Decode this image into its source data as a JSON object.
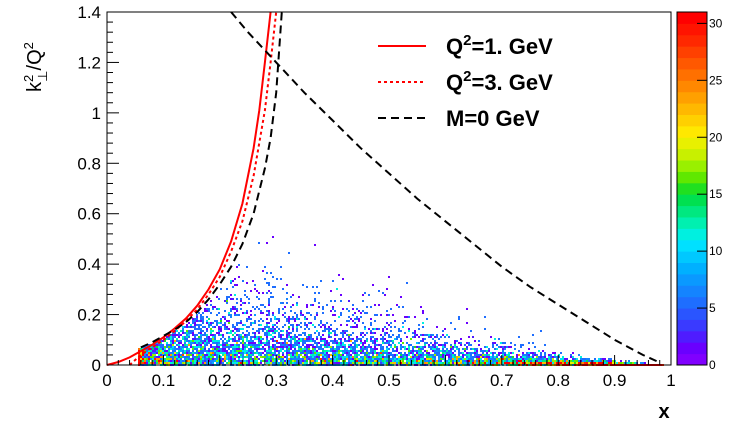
{
  "chart_data": {
    "type": "heatmap",
    "title": "",
    "xlabel": "x",
    "ylabel": "k⊥²/Q²",
    "ylabel_parts": {
      "base": "k",
      "sup": "2",
      "sub": "⊥",
      "slash": "/Q",
      "denom_sup": "2"
    },
    "xlim": [
      0,
      1
    ],
    "ylim": [
      0,
      1.4
    ],
    "x_ticks": [
      0,
      0.1,
      0.2,
      0.3,
      0.4,
      0.5,
      0.6,
      0.7,
      0.8,
      0.9,
      1
    ],
    "x_tick_labels": [
      "0",
      "0.1",
      "0.2",
      "0.3",
      "0.4",
      "0.5",
      "0.6",
      "0.7",
      "0.8",
      "0.9",
      "1"
    ],
    "y_ticks": [
      0,
      0.2,
      0.4,
      0.6,
      0.8,
      1,
      1.2,
      1.4
    ],
    "y_tick_labels": [
      "0",
      "0.2",
      "0.4",
      "0.6",
      "0.8",
      "1",
      "1.2",
      "1.4"
    ],
    "colorbar": {
      "min": 0,
      "max": 31,
      "ticks": [
        0,
        5,
        10,
        15,
        20,
        25,
        30
      ],
      "tick_labels": [
        "0",
        "5",
        "10",
        "15",
        "20",
        "25",
        "30"
      ],
      "colors": [
        "#8000ff",
        "#6a00ff",
        "#4f1cff",
        "#3a3aff",
        "#2a55ff",
        "#1e6eff",
        "#1484ff",
        "#0a99ff",
        "#00b0ff",
        "#00c8ff",
        "#00e0ff",
        "#00f0e0",
        "#00f0b0",
        "#00e880",
        "#00e050",
        "#20e020",
        "#60e800",
        "#99f000",
        "#c8f000",
        "#e8f000",
        "#ffe800",
        "#ffd000",
        "#ffb800",
        "#ffa000",
        "#ff8800",
        "#ff7000",
        "#ff5800",
        "#ff4000",
        "#ff2800",
        "#ff1400",
        "#ff0000"
      ]
    },
    "legend_position": "top-right",
    "series": [
      {
        "name": "Q²=1. GeV",
        "name_parts": {
          "prefix": "Q",
          "sup": "2",
          "suffix": "=1. GeV"
        },
        "style": "solid",
        "color": "#ff0000",
        "x": [
          0,
          0.02,
          0.04,
          0.06,
          0.08,
          0.1,
          0.12,
          0.14,
          0.16,
          0.18,
          0.2,
          0.22,
          0.24,
          0.26,
          0.27,
          0.28,
          0.29
        ],
        "y": [
          0,
          0.012,
          0.03,
          0.055,
          0.08,
          0.11,
          0.145,
          0.185,
          0.235,
          0.3,
          0.38,
          0.49,
          0.64,
          0.86,
          1.01,
          1.2,
          1.4
        ]
      },
      {
        "name": "Q²=3. GeV",
        "name_parts": {
          "prefix": "Q",
          "sup": "2",
          "suffix": "=3. GeV"
        },
        "style": "dotted",
        "color": "#ff0000",
        "x": [
          0.04,
          0.06,
          0.08,
          0.1,
          0.12,
          0.14,
          0.16,
          0.18,
          0.2,
          0.22,
          0.24,
          0.26,
          0.28,
          0.29,
          0.3
        ],
        "y": [
          0.0,
          0.04,
          0.07,
          0.1,
          0.135,
          0.175,
          0.22,
          0.28,
          0.35,
          0.45,
          0.57,
          0.75,
          1.01,
          1.2,
          1.4
        ]
      },
      {
        "name": "M=0 GeV",
        "style": "dashed",
        "color": "#000000",
        "x": [
          0.06,
          0.08,
          0.1,
          0.12,
          0.14,
          0.16,
          0.18,
          0.2,
          0.22,
          0.24,
          0.26,
          0.28,
          0.29,
          0.3,
          0.31
        ],
        "y": [
          0.07,
          0.09,
          0.115,
          0.14,
          0.17,
          0.21,
          0.26,
          0.32,
          0.39,
          0.48,
          0.6,
          0.78,
          0.9,
          1.08,
          1.4
        ]
      },
      {
        "name": "M=0 GeV (upper branch)",
        "legend": false,
        "style": "dashed",
        "color": "#000000",
        "x": [
          0.22,
          0.25,
          0.3,
          0.35,
          0.4,
          0.45,
          0.5,
          0.55,
          0.6,
          0.65,
          0.7,
          0.75,
          0.8,
          0.85,
          0.9,
          0.95,
          0.98
        ],
        "y": [
          1.4,
          1.32,
          1.2,
          1.08,
          0.97,
          0.86,
          0.76,
          0.66,
          0.57,
          0.48,
          0.39,
          0.31,
          0.24,
          0.17,
          0.1,
          0.04,
          0.01
        ]
      }
    ]
  }
}
